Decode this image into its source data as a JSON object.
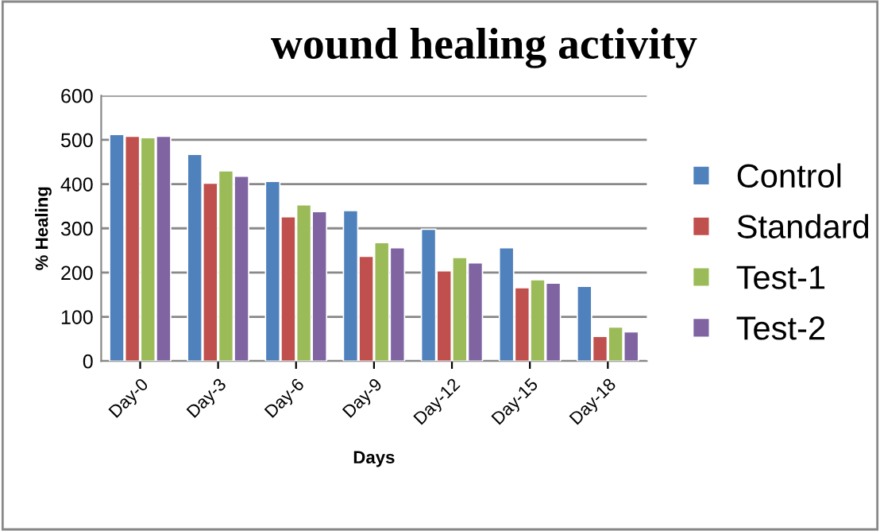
{
  "chart_data": {
    "type": "bar",
    "title": "wound healing activity",
    "xlabel": "Days",
    "ylabel": "% Healing",
    "categories": [
      "Day-0",
      "Day-3",
      "Day-6",
      "Day-9",
      "Day-12",
      "Day-15",
      "Day-18"
    ],
    "series": [
      {
        "name": "Control",
        "color": "#4f81bd",
        "values": [
          512,
          467,
          406,
          340,
          298,
          256,
          169
        ]
      },
      {
        "name": "Standard",
        "color": "#c0504d",
        "values": [
          508,
          402,
          326,
          237,
          204,
          166,
          56
        ]
      },
      {
        "name": "Test-1",
        "color": "#9bbb59",
        "values": [
          505,
          430,
          353,
          268,
          234,
          184,
          77
        ]
      },
      {
        "name": "Test-2",
        "color": "#8064a2",
        "values": [
          508,
          418,
          338,
          256,
          222,
          176,
          66
        ]
      }
    ],
    "ylim": [
      0,
      600
    ],
    "yticks": [
      0,
      100,
      200,
      300,
      400,
      500,
      600
    ],
    "grid": "y",
    "legend": "right"
  }
}
